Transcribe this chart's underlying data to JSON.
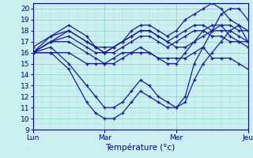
{
  "title": "",
  "xlabel": "Température (°c)",
  "ylabel": "",
  "bg_color": "#caf0f0",
  "line_color": "#1a1aaa",
  "grid_major_color": "#88cccc",
  "grid_minor_color": "#aadddd",
  "axis_color": "#0000aa",
  "tick_color": "#0000aa",
  "ylim": [
    9,
    20.5
  ],
  "xlim": [
    0,
    72
  ],
  "yticks": [
    9,
    10,
    11,
    12,
    13,
    14,
    15,
    16,
    17,
    18,
    19,
    20
  ],
  "xtick_positions": [
    0,
    24,
    48,
    72
  ],
  "xtick_labels": [
    "Lun",
    "Mar",
    "Mer",
    "Jeu"
  ],
  "series": [
    [
      0,
      16,
      6,
      16,
      12,
      14.5,
      18,
      11.5,
      21,
      10.5,
      24,
      10,
      27,
      10,
      30,
      10.5,
      33,
      11.5,
      36,
      12.5,
      39,
      12,
      42,
      11.5,
      45,
      11,
      48,
      11,
      51,
      11.5,
      54,
      13.5,
      57,
      15,
      60,
      16,
      63,
      17,
      66,
      18,
      69,
      18.5,
      72,
      18
    ],
    [
      0,
      16,
      6,
      16.5,
      12,
      15,
      18,
      13,
      21,
      12,
      24,
      11,
      27,
      11,
      30,
      11.5,
      33,
      12.5,
      36,
      13.5,
      39,
      13,
      42,
      12,
      45,
      11.5,
      48,
      11,
      51,
      12,
      54,
      15,
      57,
      16.5,
      60,
      18,
      63,
      19.5,
      66,
      20,
      69,
      20,
      72,
      19
    ],
    [
      0,
      16,
      6,
      17,
      12,
      17,
      18,
      16,
      21,
      15.5,
      24,
      15,
      27,
      15,
      30,
      15.5,
      33,
      16,
      36,
      16.5,
      39,
      16,
      42,
      15.5,
      45,
      15,
      48,
      15,
      51,
      16,
      54,
      17,
      57,
      18,
      60,
      18.5,
      63,
      18.5,
      66,
      17.5,
      69,
      17,
      72,
      16.5
    ],
    [
      0,
      16,
      6,
      17,
      12,
      17.5,
      18,
      16.5,
      21,
      16,
      24,
      16,
      27,
      16,
      30,
      16.5,
      33,
      17,
      36,
      17.5,
      39,
      17.5,
      42,
      17,
      45,
      16.5,
      48,
      17,
      51,
      17.5,
      54,
      18,
      57,
      18,
      60,
      17.5,
      63,
      17.5,
      66,
      17,
      69,
      17,
      72,
      17
    ],
    [
      0,
      16.5,
      6,
      17.5,
      12,
      18,
      18,
      17,
      21,
      16.5,
      24,
      16.5,
      27,
      16.5,
      30,
      17,
      33,
      17.5,
      36,
      18,
      39,
      18,
      42,
      17.5,
      45,
      17,
      48,
      17.5,
      51,
      18,
      54,
      18.5,
      57,
      18.5,
      60,
      18,
      63,
      18,
      66,
      18,
      69,
      17.5,
      72,
      17
    ],
    [
      0,
      16,
      6,
      17,
      12,
      18,
      18,
      17,
      21,
      16.5,
      24,
      16,
      27,
      16.5,
      30,
      17,
      33,
      17.5,
      36,
      18,
      39,
      18,
      42,
      17.5,
      45,
      17,
      48,
      16.5,
      51,
      16.5,
      54,
      17,
      57,
      17.5,
      60,
      18,
      63,
      18.5,
      66,
      18.5,
      69,
      18,
      72,
      18
    ],
    [
      0,
      16,
      6,
      17.5,
      12,
      18.5,
      18,
      17.5,
      21,
      16.5,
      24,
      16,
      27,
      16.5,
      30,
      17,
      33,
      18,
      36,
      18.5,
      39,
      18.5,
      42,
      18,
      45,
      17.5,
      48,
      18,
      51,
      19,
      54,
      19.5,
      57,
      20,
      60,
      20.5,
      63,
      20,
      66,
      19,
      69,
      18.5,
      72,
      17
    ],
    [
      0,
      16,
      6,
      16,
      12,
      16,
      18,
      15,
      21,
      15,
      24,
      15,
      27,
      15.5,
      30,
      16,
      33,
      16,
      36,
      16,
      39,
      16,
      42,
      15.5,
      45,
      15.5,
      48,
      15.5,
      51,
      15.5,
      54,
      16,
      57,
      16.5,
      60,
      15.5,
      63,
      15.5,
      66,
      15.5,
      69,
      15,
      72,
      14.5
    ]
  ]
}
